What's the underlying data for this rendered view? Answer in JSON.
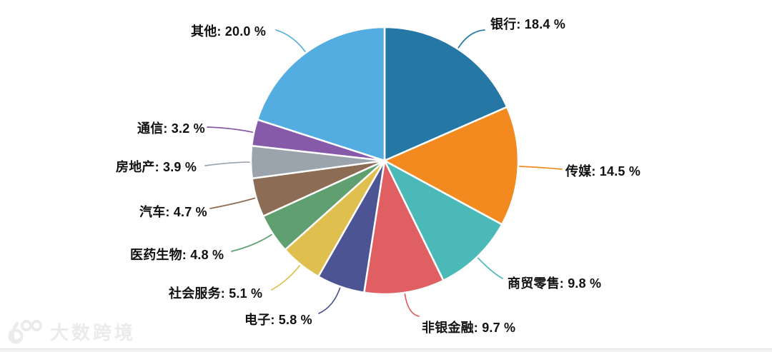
{
  "chart_data": {
    "type": "pie",
    "title": "",
    "legend_position": "none",
    "label_style": "outside-with-leader-lines",
    "start_angle_deg": 0,
    "direction": "clockwise",
    "slices": [
      {
        "name": "银行",
        "value": 18.4,
        "display": "银行: 18.4 %",
        "color": "#2577a6"
      },
      {
        "name": "传媒",
        "value": 14.5,
        "display": "传媒: 14.5 %",
        "color": "#f28a1f"
      },
      {
        "name": "商贸零售",
        "value": 9.8,
        "display": "商贸零售: 9.8 %",
        "color": "#4ab9b8"
      },
      {
        "name": "非银金融",
        "value": 9.7,
        "display": "非银金融: 9.7 %",
        "color": "#e05f63"
      },
      {
        "name": "电子",
        "value": 5.8,
        "display": "电子: 5.8 %",
        "color": "#4d5494"
      },
      {
        "name": "社会服务",
        "value": 5.1,
        "display": "社会服务: 5.1 %",
        "color": "#dfc04e"
      },
      {
        "name": "医药生物",
        "value": 4.8,
        "display": "医药生物: 4.8 %",
        "color": "#5f9f70"
      },
      {
        "name": "汽车",
        "value": 4.7,
        "display": "汽车: 4.7 %",
        "color": "#8c6c54"
      },
      {
        "name": "房地产",
        "value": 3.9,
        "display": "房地产: 3.9 %",
        "color": "#9ba3ac"
      },
      {
        "name": "通信",
        "value": 3.2,
        "display": "通信: 3.2 %",
        "color": "#8659a9"
      },
      {
        "name": "其他",
        "value": 20.0,
        "display": "其他: 20.0 %",
        "color": "#54ade0"
      }
    ]
  },
  "watermark": {
    "text": "大数跨境"
  }
}
